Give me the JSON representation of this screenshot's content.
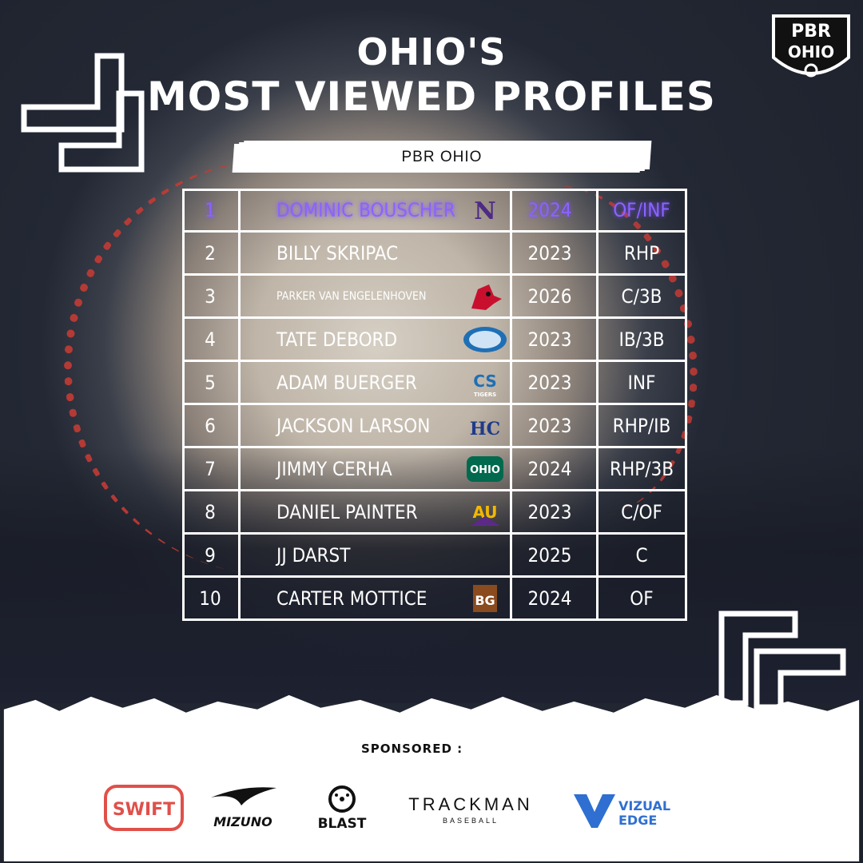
{
  "header": {
    "title_line1": "OHIO'S",
    "title_line2": "MOST VIEWED PROFILES",
    "banner": "PBR OHIO",
    "logo_text_top": "PBR",
    "logo_text_bottom": "OHIO"
  },
  "rows": [
    {
      "rank": "1",
      "name": "DOMINIC BOUSCHER",
      "year": "2024",
      "pos": "OF/INF",
      "school": "northwestern-n",
      "highlight": true
    },
    {
      "rank": "2",
      "name": "BILLY SKRIPAC",
      "year": "2023",
      "pos": "RHP",
      "school": ""
    },
    {
      "rank": "3",
      "name": "PARKER VAN ENGELENHOVEN",
      "year": "2026",
      "pos": "C/3B",
      "school": "cardinal"
    },
    {
      "rank": "4",
      "name": "TATE DEBORD",
      "year": "2023",
      "pos": "IB/3B",
      "school": "eagle-oval"
    },
    {
      "rank": "5",
      "name": "ADAM BUERGER",
      "year": "2023",
      "pos": "INF",
      "school": "cs-tigers",
      "school_text": "TIGERS"
    },
    {
      "rank": "6",
      "name": "JACKSON LARSON",
      "year": "2023",
      "pos": "RHP/IB",
      "school": "hc"
    },
    {
      "rank": "7",
      "name": "JIMMY CERHA",
      "year": "2024",
      "pos": "RHP/3B",
      "school": "ohio-bobcat"
    },
    {
      "rank": "8",
      "name": "DANIEL PAINTER",
      "year": "2023",
      "pos": "C/OF",
      "school": "au-eagle"
    },
    {
      "rank": "9",
      "name": "JJ DARST",
      "year": "2025",
      "pos": "C",
      "school": ""
    },
    {
      "rank": "10",
      "name": "CARTER MOTTICE",
      "year": "2024",
      "pos": "OF",
      "school": "bg"
    }
  ],
  "sponsors": {
    "label": "SPONSORED :",
    "items": [
      {
        "name": "SWIFT",
        "icon": "swift-logo"
      },
      {
        "name": "MIZUNO",
        "icon": "mizuno-logo"
      },
      {
        "name": "BLAST",
        "icon": "blast-logo"
      },
      {
        "name": "TRACKMAN",
        "sub": "BASEBALL",
        "icon": "trackman-logo"
      },
      {
        "name": "VIZUAL",
        "sub": "EDGE",
        "icon": "vizual-edge-logo"
      }
    ]
  },
  "colors": {
    "highlight": "#8a63ff",
    "swift": "#e0504a",
    "vizual": "#2f6fd1"
  }
}
